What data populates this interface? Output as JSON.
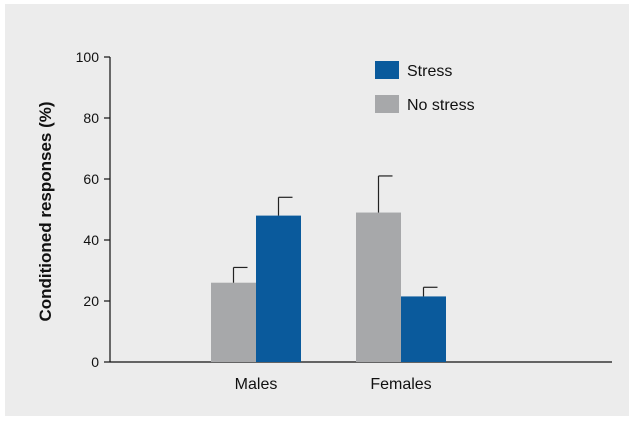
{
  "chart_data": {
    "type": "bar",
    "title": "",
    "xlabel": "",
    "ylabel": "Conditioned responses (%)",
    "ylim": [
      0,
      100
    ],
    "yticks": [
      0,
      20,
      40,
      60,
      80,
      100
    ],
    "categories": [
      "Males",
      "Females"
    ],
    "series": [
      {
        "name": "No stress",
        "color": "#a7a8aa",
        "values": [
          26,
          49
        ],
        "errors": [
          5,
          12
        ]
      },
      {
        "name": "Stress",
        "color": "#0a5a9c",
        "values": [
          48,
          21.5
        ],
        "errors": [
          6,
          3
        ]
      }
    ],
    "legend_order": [
      "Stress",
      "No stress"
    ],
    "legend_position": "top-center",
    "grid": false
  }
}
